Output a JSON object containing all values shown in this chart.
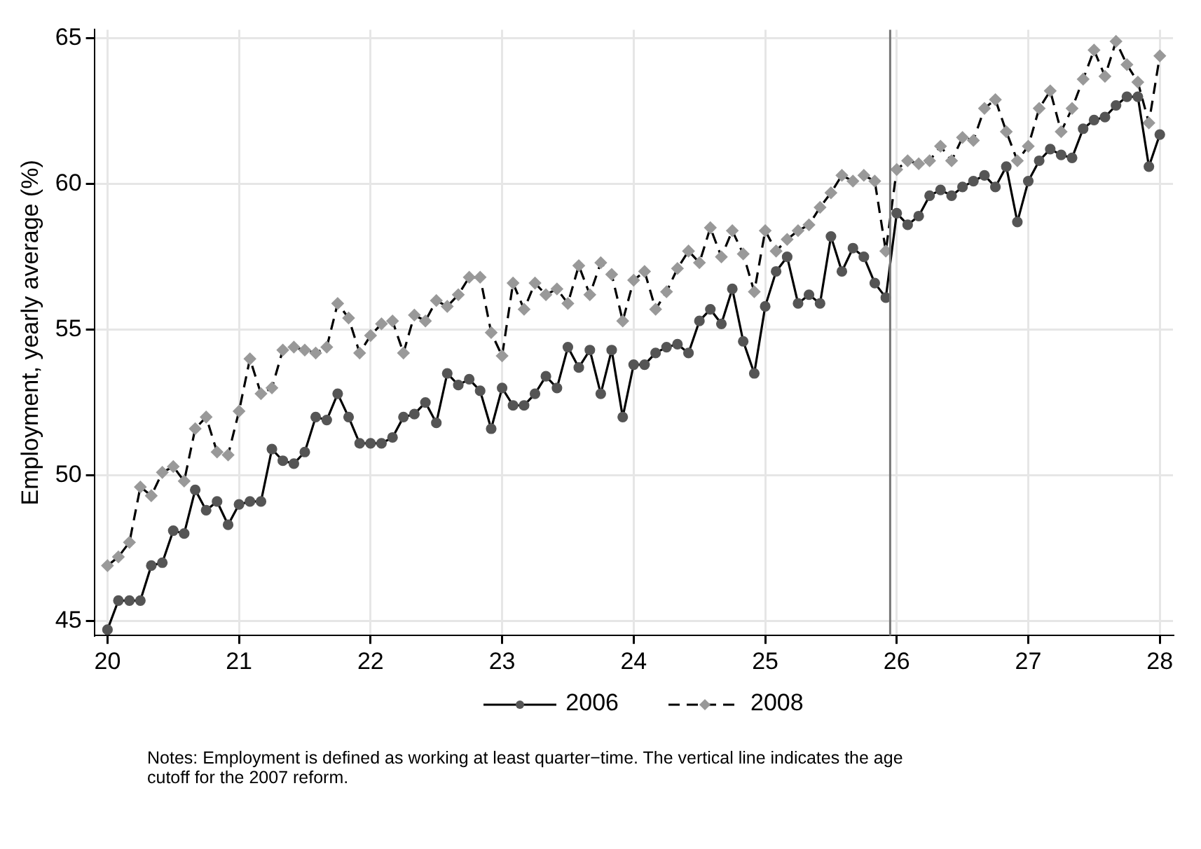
{
  "chart_data": {
    "type": "line",
    "ylabel": "Employment, yearly average (%)",
    "x": [
      20,
      20.083,
      20.167,
      20.25,
      20.333,
      20.417,
      20.5,
      20.583,
      20.667,
      20.75,
      20.833,
      20.917,
      21,
      21.083,
      21.167,
      21.25,
      21.333,
      21.417,
      21.5,
      21.583,
      21.667,
      21.75,
      21.833,
      21.917,
      22,
      22.083,
      22.167,
      22.25,
      22.333,
      22.417,
      22.5,
      22.583,
      22.667,
      22.75,
      22.833,
      22.917,
      23,
      23.083,
      23.167,
      23.25,
      23.333,
      23.417,
      23.5,
      23.583,
      23.667,
      23.75,
      23.833,
      23.917,
      24,
      24.083,
      24.167,
      24.25,
      24.333,
      24.417,
      24.5,
      24.583,
      24.667,
      24.75,
      24.833,
      24.917,
      25,
      25.083,
      25.167,
      25.25,
      25.333,
      25.417,
      25.5,
      25.583,
      25.667,
      25.75,
      25.833,
      25.917,
      26,
      26.083,
      26.167,
      26.25,
      26.333,
      26.417,
      26.5,
      26.583,
      26.667,
      26.75,
      26.833,
      26.917,
      27,
      27.083,
      27.167,
      27.25,
      27.333,
      27.417,
      27.5,
      27.583,
      27.667,
      27.75,
      27.833,
      27.917,
      28
    ],
    "series": [
      {
        "name": "2006",
        "color": "#555555",
        "marker": "circle",
        "line_style": "solid",
        "values": [
          44.7,
          45.7,
          45.7,
          45.7,
          46.9,
          47.0,
          48.1,
          48.0,
          49.5,
          48.8,
          49.1,
          48.3,
          49.0,
          49.1,
          49.1,
          50.9,
          50.5,
          50.4,
          50.8,
          52.0,
          51.9,
          52.8,
          52.0,
          51.1,
          51.1,
          51.1,
          51.3,
          52.0,
          52.1,
          52.5,
          51.8,
          53.5,
          53.1,
          53.3,
          52.9,
          51.6,
          53.0,
          52.4,
          52.4,
          52.8,
          53.4,
          53.0,
          54.4,
          53.7,
          54.3,
          52.8,
          54.3,
          52.0,
          53.8,
          53.8,
          54.2,
          54.4,
          54.5,
          54.2,
          55.3,
          55.7,
          55.2,
          56.4,
          54.6,
          53.5,
          55.8,
          57.0,
          57.5,
          55.9,
          56.2,
          55.9,
          58.2,
          57.0,
          57.8,
          57.5,
          56.6,
          56.1,
          59.0,
          58.6,
          58.9,
          59.6,
          59.8,
          59.6,
          59.9,
          60.1,
          60.3,
          59.9,
          60.6,
          58.7,
          60.1,
          60.8,
          61.2,
          61.0,
          60.9,
          61.9,
          62.2,
          62.3,
          62.7,
          63.0,
          63.0,
          60.6,
          61.7
        ]
      },
      {
        "name": "2008",
        "color": "#999999",
        "marker": "diamond",
        "line_style": "dashed",
        "values": [
          46.9,
          47.2,
          47.7,
          49.6,
          49.3,
          50.1,
          50.3,
          49.8,
          51.6,
          52.0,
          50.8,
          50.7,
          52.2,
          54.0,
          52.8,
          53.0,
          54.3,
          54.4,
          54.3,
          54.2,
          54.4,
          55.9,
          55.4,
          54.2,
          54.8,
          55.2,
          55.3,
          54.2,
          55.5,
          55.3,
          56.0,
          55.8,
          56.2,
          56.8,
          56.8,
          54.9,
          54.1,
          56.6,
          55.7,
          56.6,
          56.2,
          56.4,
          55.9,
          57.2,
          56.2,
          57.3,
          56.9,
          55.3,
          56.7,
          57.0,
          55.7,
          56.3,
          57.1,
          57.7,
          57.3,
          58.5,
          57.5,
          58.4,
          57.6,
          56.3,
          58.4,
          57.7,
          58.1,
          58.4,
          58.6,
          59.2,
          59.7,
          60.3,
          60.1,
          60.3,
          60.1,
          57.7,
          60.5,
          60.8,
          60.7,
          60.8,
          61.3,
          60.8,
          61.6,
          61.5,
          62.6,
          62.9,
          61.8,
          60.8,
          61.3,
          62.6,
          63.2,
          61.8,
          62.6,
          63.6,
          64.6,
          63.7,
          64.9,
          64.1,
          63.5,
          62.1,
          64.4
        ]
      }
    ],
    "xlim": [
      19.9,
      28.1
    ],
    "xticks": [
      20,
      21,
      22,
      23,
      24,
      25,
      26,
      27,
      28
    ],
    "ylim": [
      44.5,
      65.3
    ],
    "yticks": [
      45,
      50,
      55,
      60,
      65
    ],
    "grid": true,
    "legend": "bottom",
    "ref_lines": [
      {
        "axis": "x",
        "value": 25.95,
        "color": "#777777"
      }
    ],
    "annotations": [
      "Notes: Employment is defined as working at least quarter−time. The vertical line indicates the age cutoff for the 2007 reform."
    ]
  }
}
